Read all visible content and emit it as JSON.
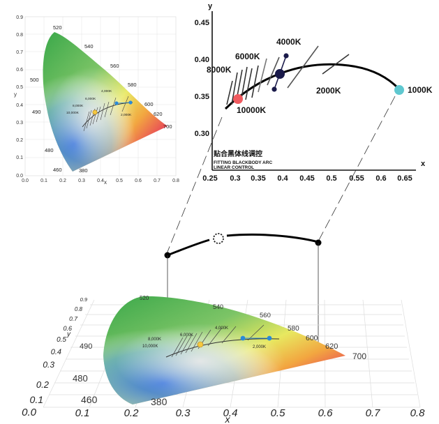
{
  "small_diagram": {
    "y_axis_label": "y",
    "x_axis_label": "x",
    "y_ticks": [
      "0.0",
      "0.1",
      "0.2",
      "0.3",
      "0.4",
      "0.5",
      "0.6",
      "0.7",
      "0.8",
      "0.9"
    ],
    "x_ticks": [
      "0.0",
      "0.1",
      "0.2",
      "0.3",
      "0.4",
      "0.5",
      "0.6",
      "0.7",
      "0.8"
    ],
    "wavelengths": [
      "520",
      "540",
      "560",
      "580",
      "600",
      "620",
      "700",
      "500",
      "490",
      "480",
      "460",
      "380"
    ],
    "cct_labels": [
      "10,000K",
      "8,000K",
      "6,000K",
      "4,000K",
      "2,000K"
    ]
  },
  "zoom_chart": {
    "y_axis_label": "y",
    "x_axis_label": "x",
    "y_ticks": [
      "0.30",
      "0.35",
      "0.40",
      "0.45"
    ],
    "x_ticks": [
      "0.25",
      "0.3",
      "0.35",
      "0.4",
      "0.45",
      "0.5",
      "0.55",
      "0.6",
      "0.65"
    ],
    "cct_labels": [
      "8000K",
      "6000K",
      "4000K",
      "10000K",
      "2000K",
      "1000K"
    ],
    "caption_cn": "贴合黑体线调控",
    "caption_en_1": "FITTING BLACKBODY ARC",
    "caption_en_2": "LINEAR CONTROL",
    "colors": {
      "cold": "#f05a5f",
      "mid": "#1a1a4a",
      "warm": "#5fc8d0"
    }
  },
  "perspective_diagram": {
    "y_axis_label": "y",
    "x_axis_label": "x",
    "y_ticks": [
      "0.0",
      "0.1",
      "0.2",
      "0.3",
      "0.4",
      "0.5",
      "0.6",
      "0.7",
      "0.8",
      "0.9"
    ],
    "x_ticks": [
      "0.1",
      "0.2",
      "0.3",
      "0.4",
      "0.5",
      "0.6",
      "0.7",
      "0.8"
    ],
    "wavelengths": [
      "520",
      "540",
      "560",
      "580",
      "600",
      "620",
      "700",
      "490",
      "480",
      "460",
      "380"
    ],
    "cct_labels": [
      "10,000K",
      "8,000K",
      "6,000K",
      "4,000K",
      "2,000K"
    ]
  }
}
